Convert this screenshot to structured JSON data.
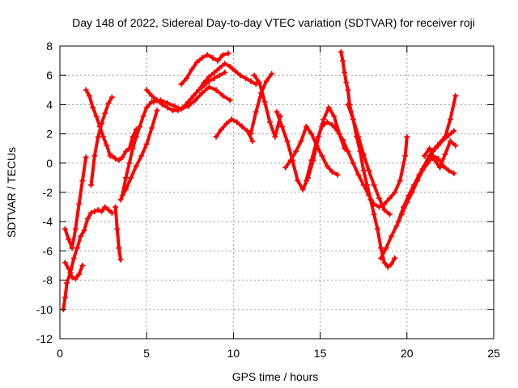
{
  "chart_data": {
    "type": "scatter",
    "title": "Day 148 of 2022, Sidereal Day-to-day VTEC variation (SDTVAR) for receiver roji",
    "xlabel": "GPS time / hours",
    "ylabel": "SDTVAR / TECUs",
    "xlim": [
      0,
      25
    ],
    "ylim": [
      -12,
      8
    ],
    "xticks": [
      "0",
      "5",
      "10",
      "15",
      "20",
      "25"
    ],
    "yticks": [
      "-12",
      "-10",
      "-8",
      "-6",
      "-4",
      "-2",
      "0",
      "2",
      "4",
      "6",
      "8"
    ],
    "grid": true,
    "marker": "+",
    "color": "#ff0000",
    "series": [
      {
        "x": [
          0.2,
          0.3,
          0.4,
          0.6,
          0.8,
          1.0,
          1.2,
          1.4,
          1.6,
          1.8,
          2.0,
          2.2,
          2.4,
          2.6,
          2.8,
          3.0
        ],
        "y": [
          -10.0,
          -9.2,
          -8.2,
          -7.5,
          -6.5,
          -5.8,
          -5.0,
          -4.6,
          -3.8,
          -3.4,
          -3.3,
          -3.2,
          -3.3,
          -3.0,
          -3.2,
          -3.4
        ]
      },
      {
        "x": [
          0.3,
          0.5,
          0.7,
          0.9,
          1.1,
          1.3,
          1.5
        ],
        "y": [
          -4.5,
          -5.2,
          -5.8,
          -4.5,
          -2.8,
          -1.2,
          0.4
        ]
      },
      {
        "x": [
          0.3,
          0.5,
          0.7,
          0.9,
          1.1,
          1.3
        ],
        "y": [
          -6.8,
          -7.2,
          -7.8,
          -7.9,
          -7.6,
          -7.0
        ]
      },
      {
        "x": [
          1.5,
          1.7,
          1.9,
          2.1,
          2.3,
          2.5,
          2.7,
          2.9
        ],
        "y": [
          5.0,
          4.6,
          3.8,
          3.2,
          2.5,
          1.8,
          1.2,
          0.5
        ]
      },
      {
        "x": [
          1.8,
          2.0,
          2.2,
          2.4,
          2.6,
          2.8,
          3.0
        ],
        "y": [
          -1.5,
          0.5,
          1.8,
          2.7,
          3.4,
          4.1,
          4.5
        ]
      },
      {
        "x": [
          3.0,
          3.2,
          3.4,
          3.6,
          3.8,
          4.0,
          4.2,
          4.4
        ],
        "y": [
          0.5,
          0.3,
          0.2,
          0.4,
          0.8,
          1.0,
          1.8,
          2.3
        ]
      },
      {
        "x": [
          3.2,
          3.3,
          3.4,
          3.5
        ],
        "y": [
          -3.0,
          -4.5,
          -5.8,
          -6.6
        ]
      },
      {
        "x": [
          3.6,
          3.8,
          4.0,
          4.2,
          4.4,
          4.6,
          4.8,
          5.0,
          5.3
        ],
        "y": [
          -2.2,
          -1.0,
          0.0,
          1.0,
          1.8,
          2.5,
          3.2,
          3.8,
          4.2
        ]
      },
      {
        "x": [
          3.5,
          3.8,
          4.1,
          4.4,
          4.7,
          5.0,
          5.3,
          5.6
        ],
        "y": [
          -2.5,
          -1.8,
          -1.0,
          -0.2,
          0.5,
          1.3,
          2.4,
          3.6
        ]
      },
      {
        "x": [
          5.0,
          5.3,
          5.6,
          5.9,
          6.2,
          6.5,
          6.8,
          7.1,
          7.4,
          7.7,
          8.0,
          8.3,
          8.6,
          8.9,
          9.2,
          9.5
        ],
        "y": [
          5.0,
          4.6,
          4.3,
          4.0,
          3.8,
          3.6,
          3.6,
          3.8,
          4.2,
          4.6,
          5.0,
          5.3,
          5.6,
          5.8,
          6.0,
          6.2
        ]
      },
      {
        "x": [
          5.4,
          5.8,
          6.2,
          6.6,
          7.0,
          7.4,
          7.8,
          8.2,
          8.6,
          9.0,
          9.4,
          9.8
        ],
        "y": [
          4.2,
          4.3,
          4.1,
          3.9,
          3.7,
          3.9,
          4.3,
          4.8,
          5.2,
          5.0,
          4.6,
          4.3
        ]
      },
      {
        "x": [
          7.0,
          7.3,
          7.6,
          7.9,
          8.2,
          8.5,
          8.8,
          9.1,
          9.4,
          9.7
        ],
        "y": [
          5.4,
          5.8,
          6.4,
          6.9,
          7.2,
          7.4,
          7.2,
          7.0,
          7.4,
          7.5
        ]
      },
      {
        "x": [
          8.0,
          8.3,
          8.6,
          8.9,
          9.2,
          9.5,
          9.8,
          10.1,
          10.4,
          10.7,
          11.0,
          11.3
        ],
        "y": [
          5.0,
          5.5,
          5.9,
          6.2,
          6.5,
          6.8,
          6.6,
          6.3,
          6.0,
          5.8,
          5.6,
          5.4
        ]
      },
      {
        "x": [
          9.0,
          9.3,
          9.6,
          9.9,
          10.2,
          10.5,
          10.8,
          11.1
        ],
        "y": [
          1.8,
          2.3,
          2.7,
          3.0,
          2.8,
          2.5,
          2.2,
          1.5
        ]
      },
      {
        "x": [
          11.2,
          11.5,
          11.8,
          12.1,
          12.4,
          12.7
        ],
        "y": [
          6.0,
          5.5,
          4.2,
          2.8,
          1.8,
          3.2
        ]
      },
      {
        "x": [
          11.0,
          11.3,
          11.6,
          11.9,
          12.2
        ],
        "y": [
          2.0,
          3.5,
          4.8,
          5.6,
          6.1
        ]
      },
      {
        "x": [
          12.5,
          12.8,
          13.1,
          13.4,
          13.7,
          14.0,
          14.3,
          14.6,
          14.9,
          15.2,
          15.5,
          15.8,
          16.1,
          16.4
        ],
        "y": [
          3.5,
          2.5,
          1.5,
          0.2,
          -1.2,
          -1.8,
          -1.0,
          0.2,
          1.8,
          3.0,
          3.8,
          3.2,
          2.0,
          1.0
        ]
      },
      {
        "x": [
          13.0,
          13.3,
          13.6,
          13.9,
          14.2,
          14.5,
          14.8,
          15.1,
          15.4,
          15.7,
          16.0
        ],
        "y": [
          -0.3,
          0.2,
          0.8,
          1.5,
          2.5,
          2.0,
          1.2,
          0.5,
          -0.2,
          -0.6,
          -0.8
        ]
      },
      {
        "x": [
          14.2,
          14.5,
          14.8,
          15.1,
          15.4,
          15.7,
          16.0,
          16.3,
          16.6,
          16.9,
          17.2,
          17.5,
          17.8,
          18.1,
          18.4,
          18.7,
          19.0,
          19.3,
          19.6,
          19.9,
          20.0
        ],
        "y": [
          -1.2,
          0.2,
          1.5,
          2.5,
          2.8,
          2.6,
          2.2,
          1.6,
          0.8,
          0.0,
          -0.8,
          -1.5,
          -2.2,
          -2.8,
          -3.0,
          -2.8,
          -2.4,
          -2.0,
          -1.2,
          0.5,
          1.8
        ]
      },
      {
        "x": [
          16.2,
          16.3,
          16.4,
          16.5,
          16.6,
          16.7,
          16.9,
          17.1,
          17.3,
          17.5,
          17.7,
          17.9,
          18.1,
          18.3,
          18.5,
          18.7,
          18.9,
          19.1,
          19.3
        ],
        "y": [
          7.6,
          7.0,
          6.2,
          5.5,
          5.0,
          4.0,
          3.0,
          1.8,
          0.8,
          -0.5,
          -1.5,
          -2.5,
          -3.5,
          -4.5,
          -5.8,
          -6.8,
          -7.1,
          -6.9,
          -6.5
        ]
      },
      {
        "x": [
          16.6,
          16.9,
          17.2,
          17.5,
          17.8,
          18.1,
          18.4,
          18.7,
          19.0
        ],
        "y": [
          4.0,
          3.0,
          1.8,
          0.6,
          -0.5,
          -1.5,
          -2.4,
          -3.2,
          -3.5
        ]
      },
      {
        "x": [
          18.5,
          18.8,
          19.1,
          19.4,
          19.7,
          20.0,
          20.3,
          20.6,
          20.9,
          21.2,
          21.5,
          21.8,
          22.1,
          22.4,
          22.7
        ],
        "y": [
          -6.5,
          -5.8,
          -5.0,
          -4.3,
          -3.5,
          -2.7,
          -2.0,
          -1.2,
          -0.4,
          0.3,
          0.8,
          1.2,
          1.6,
          1.9,
          2.2
        ]
      },
      {
        "x": [
          19.5,
          19.8,
          20.1,
          20.4,
          20.7,
          21.0,
          21.3,
          21.6,
          21.9,
          22.2,
          22.5,
          22.8
        ],
        "y": [
          -4.0,
          -3.0,
          -2.2,
          -1.5,
          -0.8,
          -0.2,
          0.5,
          1.0,
          1.4,
          1.8,
          3.0,
          4.6
        ]
      },
      {
        "x": [
          20.6,
          20.9,
          21.2,
          21.5,
          21.8,
          22.1,
          22.4,
          22.7
        ],
        "y": [
          -1.2,
          -0.5,
          0.0,
          0.5,
          0.3,
          -0.2,
          -0.5,
          -0.7
        ]
      },
      {
        "x": [
          21.0,
          21.3,
          21.6,
          21.9,
          22.2,
          22.5,
          22.8
        ],
        "y": [
          0.5,
          1.0,
          0.2,
          -0.3,
          0.6,
          1.5,
          1.2
        ]
      }
    ]
  }
}
